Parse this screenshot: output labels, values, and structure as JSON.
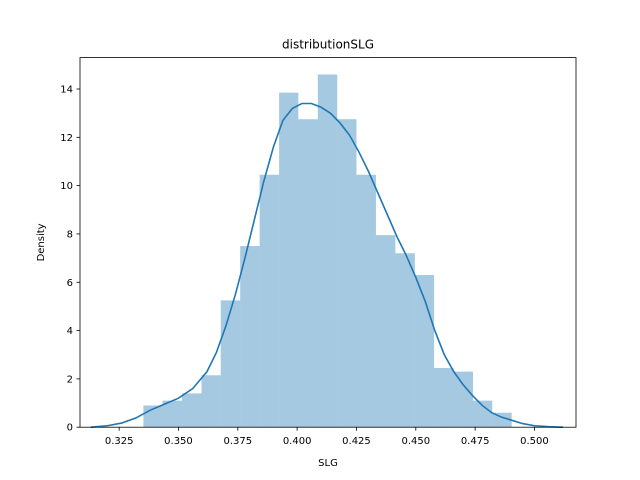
{
  "chart_data": {
    "type": "bar",
    "title": "distributionSLG",
    "xlabel": "SLG",
    "ylabel": "Density",
    "xlim": [
      0.3085,
      0.5175
    ],
    "ylim": [
      0,
      15.3
    ],
    "grid": false,
    "xticks": [
      0.325,
      0.35,
      0.375,
      0.4,
      0.425,
      0.45,
      0.475,
      0.5
    ],
    "xtick_labels": [
      "0.325",
      "0.350",
      "0.375",
      "0.400",
      "0.425",
      "0.450",
      "0.475",
      "0.500"
    ],
    "yticks": [
      0,
      2,
      4,
      6,
      8,
      10,
      12,
      14
    ],
    "ytick_labels": [
      "0",
      "2",
      "4",
      "6",
      "8",
      "10",
      "12",
      "14"
    ],
    "histogram": {
      "color": "#1f77b4",
      "opacity": 0.4,
      "bins": [
        {
          "x0": 0.3352,
          "x1": 0.3433,
          "y": 0.9
        },
        {
          "x0": 0.3433,
          "x1": 0.3515,
          "y": 1.1
        },
        {
          "x0": 0.3515,
          "x1": 0.3597,
          "y": 1.4
        },
        {
          "x0": 0.3597,
          "x1": 0.3678,
          "y": 2.15
        },
        {
          "x0": 0.3678,
          "x1": 0.376,
          "y": 5.25
        },
        {
          "x0": 0.376,
          "x1": 0.3842,
          "y": 7.5
        },
        {
          "x0": 0.3842,
          "x1": 0.3924,
          "y": 10.45
        },
        {
          "x0": 0.3924,
          "x1": 0.4005,
          "y": 13.85
        },
        {
          "x0": 0.4005,
          "x1": 0.4087,
          "y": 12.75
        },
        {
          "x0": 0.4087,
          "x1": 0.4169,
          "y": 14.6
        },
        {
          "x0": 0.4169,
          "x1": 0.425,
          "y": 12.75
        },
        {
          "x0": 0.425,
          "x1": 0.4332,
          "y": 10.45
        },
        {
          "x0": 0.4332,
          "x1": 0.4414,
          "y": 7.95
        },
        {
          "x0": 0.4414,
          "x1": 0.4496,
          "y": 7.2
        },
        {
          "x0": 0.4496,
          "x1": 0.4577,
          "y": 6.3
        },
        {
          "x0": 0.4577,
          "x1": 0.4659,
          "y": 2.45
        },
        {
          "x0": 0.4659,
          "x1": 0.4741,
          "y": 2.3
        },
        {
          "x0": 0.4741,
          "x1": 0.4822,
          "y": 1.1
        },
        {
          "x0": 0.4822,
          "x1": 0.4904,
          "y": 0.6
        }
      ]
    },
    "kde": {
      "color": "#1f77b4",
      "points": [
        [
          0.313,
          0.0
        ],
        [
          0.32,
          0.06
        ],
        [
          0.326,
          0.17
        ],
        [
          0.332,
          0.38
        ],
        [
          0.338,
          0.7
        ],
        [
          0.344,
          0.95
        ],
        [
          0.35,
          1.2
        ],
        [
          0.356,
          1.6
        ],
        [
          0.362,
          2.3
        ],
        [
          0.366,
          3.1
        ],
        [
          0.37,
          4.2
        ],
        [
          0.374,
          5.5
        ],
        [
          0.378,
          7.0
        ],
        [
          0.382,
          8.6
        ],
        [
          0.386,
          10.2
        ],
        [
          0.39,
          11.6
        ],
        [
          0.394,
          12.7
        ],
        [
          0.398,
          13.2
        ],
        [
          0.402,
          13.4
        ],
        [
          0.406,
          13.4
        ],
        [
          0.41,
          13.25
        ],
        [
          0.414,
          13.0
        ],
        [
          0.418,
          12.6
        ],
        [
          0.422,
          12.1
        ],
        [
          0.426,
          11.4
        ],
        [
          0.43,
          10.6
        ],
        [
          0.434,
          9.7
        ],
        [
          0.438,
          8.8
        ],
        [
          0.442,
          7.9
        ],
        [
          0.446,
          7.1
        ],
        [
          0.45,
          6.2
        ],
        [
          0.454,
          5.2
        ],
        [
          0.458,
          4.0
        ],
        [
          0.462,
          3.0
        ],
        [
          0.466,
          2.3
        ],
        [
          0.47,
          1.75
        ],
        [
          0.474,
          1.3
        ],
        [
          0.478,
          0.9
        ],
        [
          0.482,
          0.6
        ],
        [
          0.486,
          0.42
        ],
        [
          0.49,
          0.3
        ],
        [
          0.495,
          0.15
        ],
        [
          0.5,
          0.06
        ],
        [
          0.506,
          0.02
        ],
        [
          0.512,
          0.0
        ]
      ]
    }
  }
}
